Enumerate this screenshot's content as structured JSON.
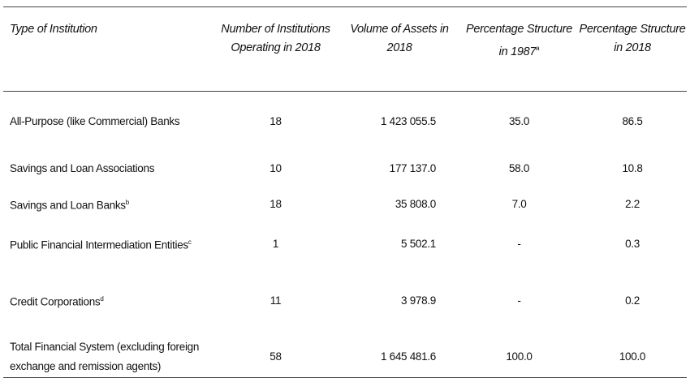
{
  "table": {
    "headers": [
      {
        "text": "Type of Institution"
      },
      {
        "text": "Number of Institutions Operating in 2018"
      },
      {
        "text": "Volume of Assets in 2018"
      },
      {
        "text": "Percentage Structure in 1987",
        "note": "a"
      },
      {
        "text": "Percentage Structure in 2018"
      }
    ],
    "rows": [
      {
        "label": "All-Purpose (like Commercial) Banks",
        "cells": [
          "18",
          "1 423 055.5",
          "35.0",
          "86.5"
        ]
      },
      {
        "label": "Savings and Loan Associations",
        "cells": [
          "10",
          "177 137.0",
          "58.0",
          "10.8"
        ]
      },
      {
        "label": "Savings and Loan Banks",
        "note": "b",
        "cells": [
          "18",
          "35 808.0",
          "7.0",
          "2.2"
        ]
      },
      {
        "label": "Public Financial Intermediation Entities",
        "note": "c",
        "cells": [
          "1",
          "5 502.1",
          "-",
          "0.3"
        ]
      },
      {
        "label": "Credit Corporations",
        "note": "d",
        "cells": [
          "11",
          "3 978.9",
          "-",
          "0.2"
        ]
      },
      {
        "label": "Total Financial System (excluding foreign exchange and remission agents)",
        "cells": [
          "58",
          "1 645 481.6",
          "100.0",
          "100.0"
        ]
      }
    ]
  }
}
